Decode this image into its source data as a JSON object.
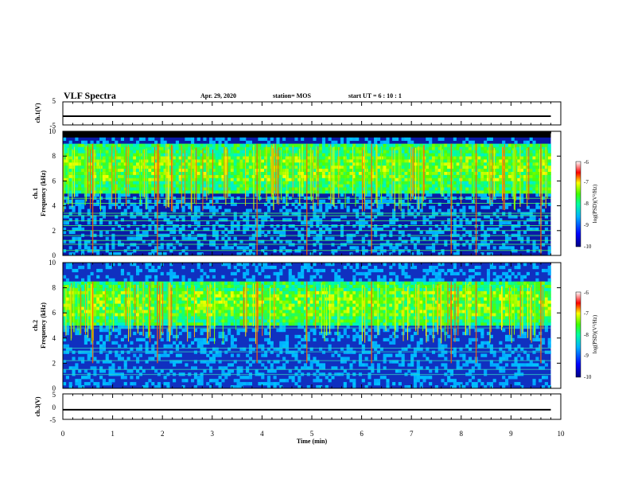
{
  "header": {
    "title": "VLF Spectra",
    "date": "Apr. 29, 2020",
    "station": "station= MOS",
    "start": "start  UT  =   6  : 10 : 1"
  },
  "chart_data": [
    {
      "type": "line",
      "panel": "ch1-waveform",
      "ylabel": "ch.1(V)",
      "ylim": [
        -5,
        5
      ],
      "yticks": [
        "5",
        "-5"
      ],
      "x": [
        0,
        9.8
      ],
      "values": [
        -1.2,
        -1.2
      ]
    },
    {
      "type": "heatmap",
      "panel": "ch1-spectrogram",
      "ylabel_top": "ch.1",
      "ylabel": "Frequency (kHz)",
      "ylim": [
        0,
        10
      ],
      "yticks": [
        "0",
        "2",
        "4",
        "6",
        "8",
        "10"
      ],
      "xlim": [
        0,
        9.8
      ],
      "emission_band_khz": [
        5,
        9
      ],
      "top_cutoff_khz": 9.5,
      "colorbar": {
        "label": "log(PSD)(V²/Hz)",
        "ticks": [
          "-6",
          "-7",
          "-8",
          "-9",
          "-10"
        ],
        "range": [
          -10,
          -6
        ]
      }
    },
    {
      "type": "heatmap",
      "panel": "ch2-spectrogram",
      "ylabel_top": "ch.2",
      "ylabel": "Frequency (kHz)",
      "ylim": [
        0,
        10
      ],
      "yticks": [
        "0",
        "2",
        "4",
        "6",
        "8",
        "10"
      ],
      "xlim": [
        0,
        9.8
      ],
      "emission_band_khz": [
        5,
        8.5
      ],
      "colorbar": {
        "label": "log(PSD)(V²/Hz)",
        "ticks": [
          "-6",
          "-7",
          "-8",
          "-9",
          "-10"
        ],
        "range": [
          -10,
          -6
        ]
      }
    },
    {
      "type": "line",
      "panel": "ch3-waveform",
      "ylabel": "ch.3(V)",
      "ylim": [
        -5,
        5
      ],
      "yticks": [
        "5",
        "0",
        "-5"
      ],
      "x": [
        0,
        9.8
      ],
      "values": [
        -1.2,
        -1.2
      ]
    }
  ],
  "xaxis": {
    "label": "Time  (min)",
    "range": [
      0,
      10
    ],
    "ticks": [
      "0",
      "1",
      "2",
      "3",
      "4",
      "5",
      "6",
      "7",
      "8",
      "9",
      "10"
    ]
  },
  "colors": {
    "colormap": [
      "#00007f",
      "#0000ff",
      "#0080ff",
      "#00ffff",
      "#00ff80",
      "#80ff00",
      "#ffff00",
      "#ff8000",
      "#ff0000",
      "#ffffff"
    ],
    "background": "#ffffff",
    "axis": "#000000"
  }
}
